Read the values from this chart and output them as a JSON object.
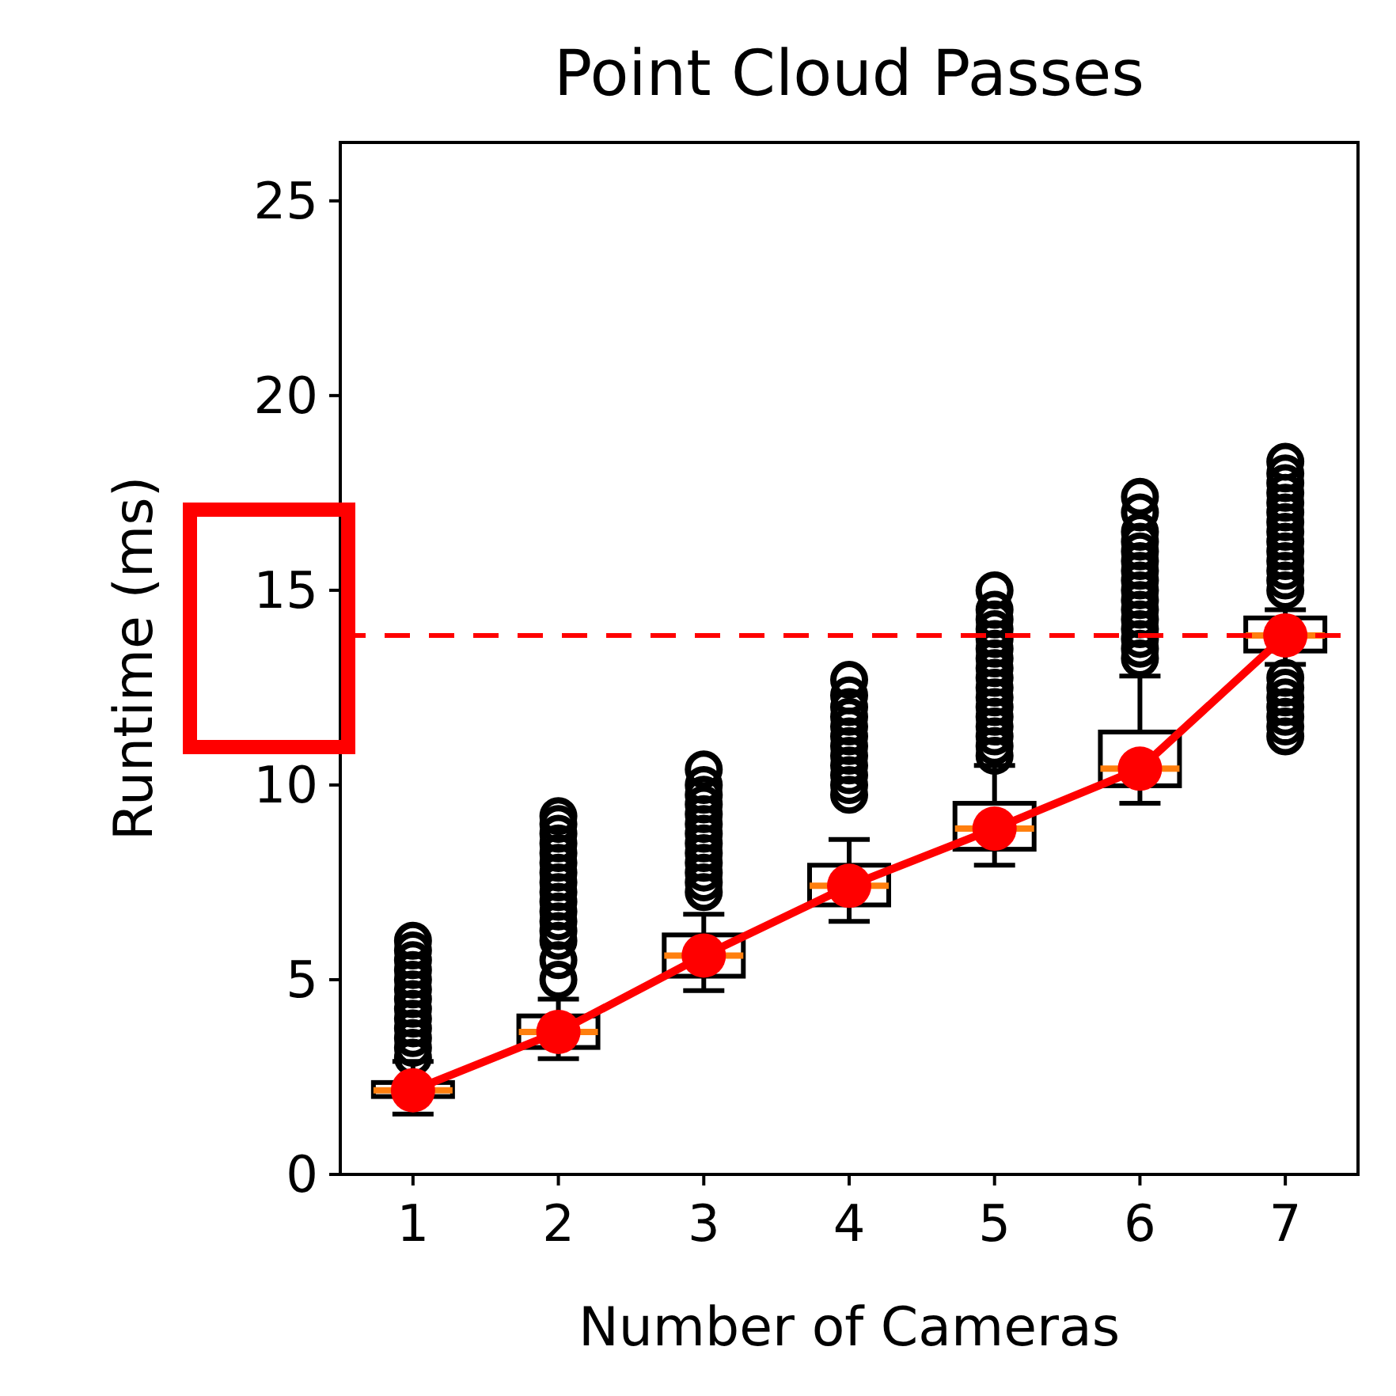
{
  "chart_data": {
    "type": "box",
    "title": "Point Cloud Passes",
    "xlabel": "Number of Cameras",
    "ylabel": "Runtime (ms)",
    "categories": [
      "1",
      "2",
      "3",
      "4",
      "5",
      "6",
      "7"
    ],
    "ylim": [
      0,
      26.5
    ],
    "yticks": [
      0,
      5,
      10,
      15,
      20,
      25
    ],
    "boxes": [
      {
        "low": 1.55,
        "q1": 2.0,
        "median": 2.16,
        "q3": 2.36,
        "high": 2.9,
        "outliers": [
          3.0,
          3.25,
          3.5,
          3.75,
          4.0,
          4.25,
          4.5,
          4.75,
          5.0,
          5.25,
          5.5,
          5.75,
          6.0
        ]
      },
      {
        "low": 2.97,
        "q1": 3.26,
        "median": 3.66,
        "q3": 4.07,
        "high": 4.5,
        "outliers": [
          5.0,
          5.5,
          6.0,
          6.25,
          6.5,
          6.75,
          7.0,
          7.25,
          7.5,
          7.75,
          8.0,
          8.25,
          8.5,
          8.75,
          9.0,
          9.2
        ]
      },
      {
        "low": 4.72,
        "q1": 5.09,
        "median": 5.62,
        "q3": 6.15,
        "high": 6.68,
        "outliers": [
          7.25,
          7.5,
          7.75,
          8.0,
          8.25,
          8.5,
          8.75,
          9.0,
          9.25,
          9.5,
          9.75,
          10.0,
          10.4
        ]
      },
      {
        "low": 6.5,
        "q1": 6.92,
        "median": 7.41,
        "q3": 7.94,
        "high": 8.6,
        "outliers": [
          9.75,
          10.0,
          10.25,
          10.5,
          10.75,
          11.0,
          11.25,
          11.5,
          11.75,
          12.0,
          12.3,
          12.7
        ]
      },
      {
        "low": 7.94,
        "q1": 8.35,
        "median": 8.88,
        "q3": 9.53,
        "high": 10.5,
        "outliers": [
          10.75,
          11.0,
          11.25,
          11.5,
          11.75,
          12.0,
          12.25,
          12.5,
          12.75,
          13.0,
          13.25,
          13.5,
          13.75,
          14.0,
          14.25,
          14.5,
          15.0
        ]
      },
      {
        "low": 9.53,
        "q1": 9.98,
        "median": 10.42,
        "q3": 11.36,
        "high": 12.8,
        "outliers": [
          13.25,
          13.5,
          13.75,
          14.0,
          14.25,
          14.5,
          14.75,
          15.0,
          15.25,
          15.5,
          15.75,
          16.0,
          16.25,
          16.5,
          17.0,
          17.4
        ]
      },
      {
        "low": 13.1,
        "q1": 13.44,
        "median": 13.84,
        "q3": 14.29,
        "high": 14.5,
        "outliers": [
          11.25,
          11.5,
          11.75,
          12.0,
          12.25,
          12.5,
          12.75,
          15.0,
          15.25,
          15.5,
          15.75,
          16.0,
          16.25,
          16.5,
          16.75,
          17.0,
          17.25,
          17.5,
          17.75,
          18.0,
          18.3
        ]
      }
    ],
    "series": [
      {
        "type": "line",
        "color": "#ff0000",
        "values": [
          2.16,
          3.66,
          5.62,
          7.41,
          8.88,
          10.42,
          13.84
        ]
      }
    ],
    "marker": "circle",
    "ref_lines": [
      {
        "axis": "y",
        "value": 13.84,
        "color": "#ff0000",
        "line_style": "dashed"
      }
    ]
  }
}
